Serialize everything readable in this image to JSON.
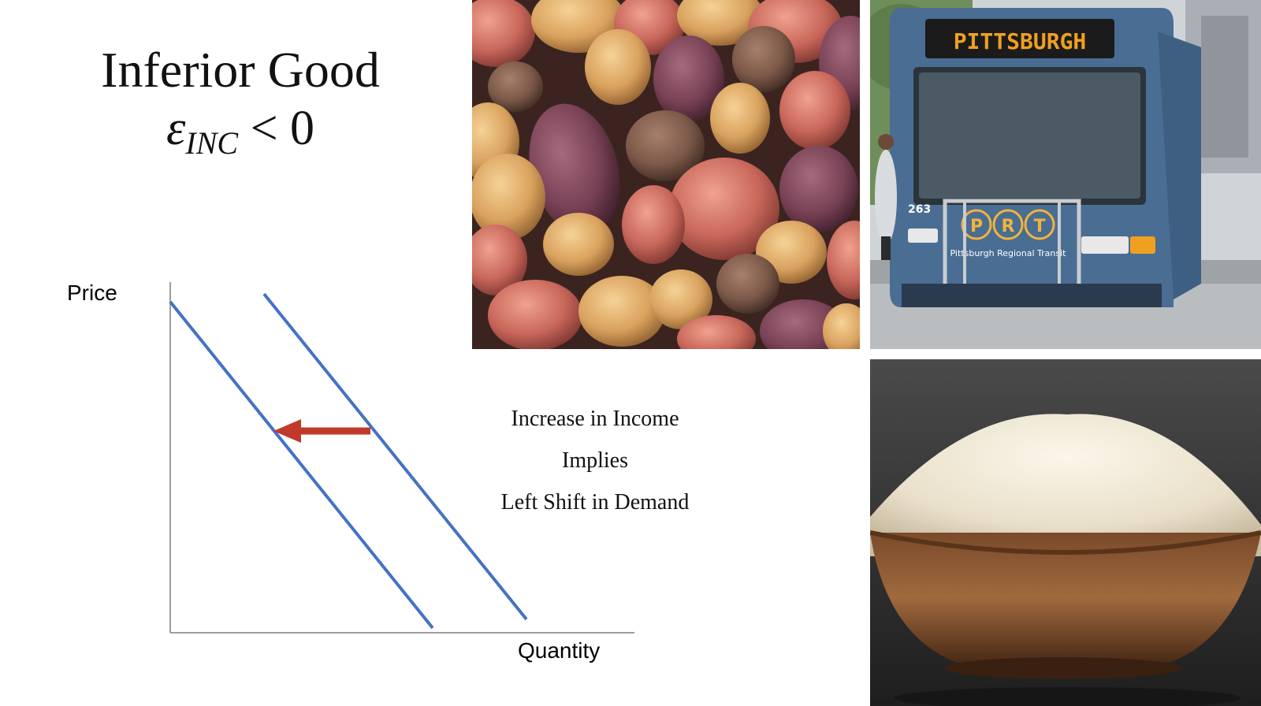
{
  "title": {
    "line1": "Inferior Good",
    "symbol": "ε",
    "subscript": "INC",
    "relation": " < 0"
  },
  "diagram": {
    "y_axis_label": "Price",
    "x_axis_label": "Quantity",
    "curve_color": "#4472c4",
    "arrow_color": "#c0392b",
    "shift_direction": "left"
  },
  "caption": {
    "line1": "Increase in Income",
    "line2": "Implies",
    "line3": "Left Shift in Demand"
  },
  "photos": {
    "bus": {
      "destination_sign": "PITTSBURGH",
      "logo_letters": [
        "P",
        "R",
        "T"
      ],
      "operator_text": "Pittsburgh Regional Transit",
      "fleet_number": "263"
    }
  }
}
